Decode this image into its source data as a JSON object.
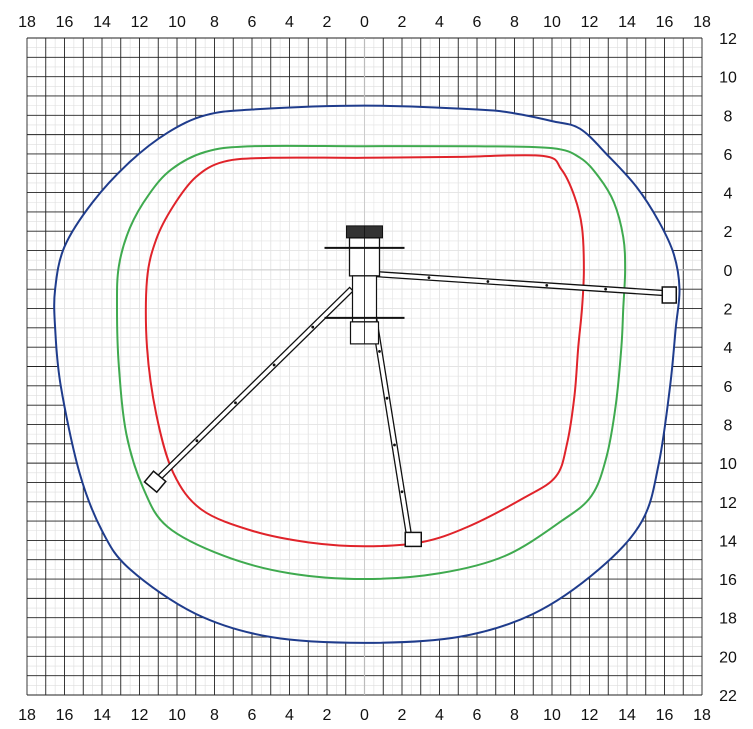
{
  "chart_data": {
    "type": "diagram",
    "x_axis": {
      "range": [
        -18,
        18
      ],
      "major_step": 2,
      "tick_values": [
        -18,
        -16,
        -14,
        -12,
        -10,
        -8,
        -6,
        -4,
        -2,
        0,
        2,
        4,
        6,
        8,
        10,
        12,
        14,
        16,
        18
      ],
      "tick_labels": [
        "18",
        "16",
        "14",
        "12",
        "10",
        "8",
        "6",
        "4",
        "2",
        "0",
        "2",
        "4",
        "6",
        "8",
        "10",
        "12",
        "14",
        "16",
        "18"
      ]
    },
    "y_axis": {
      "range": [
        -12,
        22
      ],
      "major_step": 2,
      "tick_values": [
        -12,
        -10,
        -8,
        -6,
        -4,
        -2,
        0,
        2,
        4,
        6,
        8,
        10,
        12,
        14,
        16,
        18,
        20,
        22
      ],
      "tick_labels": [
        "12",
        "10",
        "8",
        "6",
        "4",
        "2",
        "0",
        "2",
        "4",
        "6",
        "8",
        "10",
        "12",
        "14",
        "16",
        "18",
        "20",
        "22"
      ]
    },
    "grid": {
      "major": true,
      "minor": true
    },
    "colors": {
      "grid_major": "#222222",
      "grid_minor": "#dddddd",
      "blue_envelope": "#1f3c8c",
      "green_envelope": "#3faa4f",
      "red_envelope": "#e0232a",
      "machine": "#111111"
    },
    "envelopes": [
      {
        "color": "blue",
        "points": [
          [
            0,
            -8.5
          ],
          [
            6,
            -8.3
          ],
          [
            8,
            -8.1
          ],
          [
            10,
            -7.7
          ],
          [
            11.5,
            -7.3
          ],
          [
            13,
            -5.9
          ],
          [
            14.5,
            -4.3
          ],
          [
            15.7,
            -2.5
          ],
          [
            16.5,
            -0.8
          ],
          [
            16.8,
            1
          ],
          [
            16.6,
            3
          ],
          [
            16.3,
            6
          ],
          [
            15.7,
            10
          ],
          [
            14.8,
            13
          ],
          [
            12.5,
            15.5
          ],
          [
            9,
            17.8
          ],
          [
            5,
            19
          ],
          [
            0,
            19.3
          ],
          [
            -5,
            19
          ],
          [
            -9,
            17.8
          ],
          [
            -12.5,
            15.5
          ],
          [
            -14,
            13.5
          ],
          [
            -15.2,
            10.5
          ],
          [
            -16.2,
            6
          ],
          [
            -16.5,
            3
          ],
          [
            -16.5,
            1
          ],
          [
            -16,
            -1.2
          ],
          [
            -14.5,
            -3.5
          ],
          [
            -12.5,
            -5.6
          ],
          [
            -10.5,
            -7.1
          ],
          [
            -8.5,
            -8
          ],
          [
            -6,
            -8.3
          ]
        ]
      },
      {
        "color": "green",
        "points": [
          [
            0,
            -6.4
          ],
          [
            6,
            -6.4
          ],
          [
            10,
            -6.3
          ],
          [
            11.5,
            -5.8
          ],
          [
            12.5,
            -4.8
          ],
          [
            13.3,
            -3.5
          ],
          [
            13.8,
            -1.7
          ],
          [
            13.9,
            0
          ],
          [
            13.8,
            2
          ],
          [
            13.7,
            4
          ],
          [
            13.4,
            7
          ],
          [
            12.9,
            9.7
          ],
          [
            12.1,
            11.7
          ],
          [
            10.5,
            13
          ],
          [
            7.5,
            14.8
          ],
          [
            4,
            15.7
          ],
          [
            0,
            16
          ],
          [
            -4,
            15.7
          ],
          [
            -7.5,
            14.8
          ],
          [
            -10.5,
            13.3
          ],
          [
            -11.8,
            11.3
          ],
          [
            -12.7,
            8.5
          ],
          [
            -13.1,
            5
          ],
          [
            -13.2,
            2
          ],
          [
            -13.1,
            -0.2
          ],
          [
            -12.5,
            -2.2
          ],
          [
            -11.5,
            -3.9
          ],
          [
            -10.3,
            -5.2
          ],
          [
            -8.5,
            -6.1
          ],
          [
            -6,
            -6.4
          ]
        ]
      },
      {
        "color": "red",
        "points": [
          [
            0,
            -5.8
          ],
          [
            5,
            -5.85
          ],
          [
            9.5,
            -5.9
          ],
          [
            10.5,
            -5.2
          ],
          [
            11.2,
            -3.8
          ],
          [
            11.6,
            -2.2
          ],
          [
            11.7,
            0
          ],
          [
            11.6,
            2
          ],
          [
            11.4,
            4
          ],
          [
            11.2,
            6.5
          ],
          [
            10.8,
            9
          ],
          [
            10.2,
            10.7
          ],
          [
            8.5,
            11.8
          ],
          [
            5.5,
            13.3
          ],
          [
            3,
            14.1
          ],
          [
            0,
            14.3
          ],
          [
            -3,
            14.1
          ],
          [
            -6,
            13.5
          ],
          [
            -8.7,
            12.4
          ],
          [
            -10.2,
            10.5
          ],
          [
            -11.1,
            7.5
          ],
          [
            -11.6,
            4
          ],
          [
            -11.6,
            0.5
          ],
          [
            -11.1,
            -1.6
          ],
          [
            -10.2,
            -3.3
          ],
          [
            -9,
            -4.8
          ],
          [
            -7.5,
            -5.6
          ],
          [
            -5,
            -5.8
          ]
        ]
      }
    ],
    "machine": {
      "center": [
        0,
        0
      ],
      "legs": [
        {
          "from": [
            0.3,
            0.2
          ],
          "to": [
            16,
            1.2
          ]
        },
        {
          "from": [
            -0.7,
            1.0
          ],
          "to": [
            -11,
            10.8
          ]
        },
        {
          "from": [
            0.4,
            1.8
          ],
          "to": [
            2.4,
            13.9
          ]
        }
      ],
      "feet": [
        [
          16.2,
          1.3
        ],
        [
          -11.2,
          11
        ],
        [
          2.6,
          14
        ]
      ]
    }
  }
}
